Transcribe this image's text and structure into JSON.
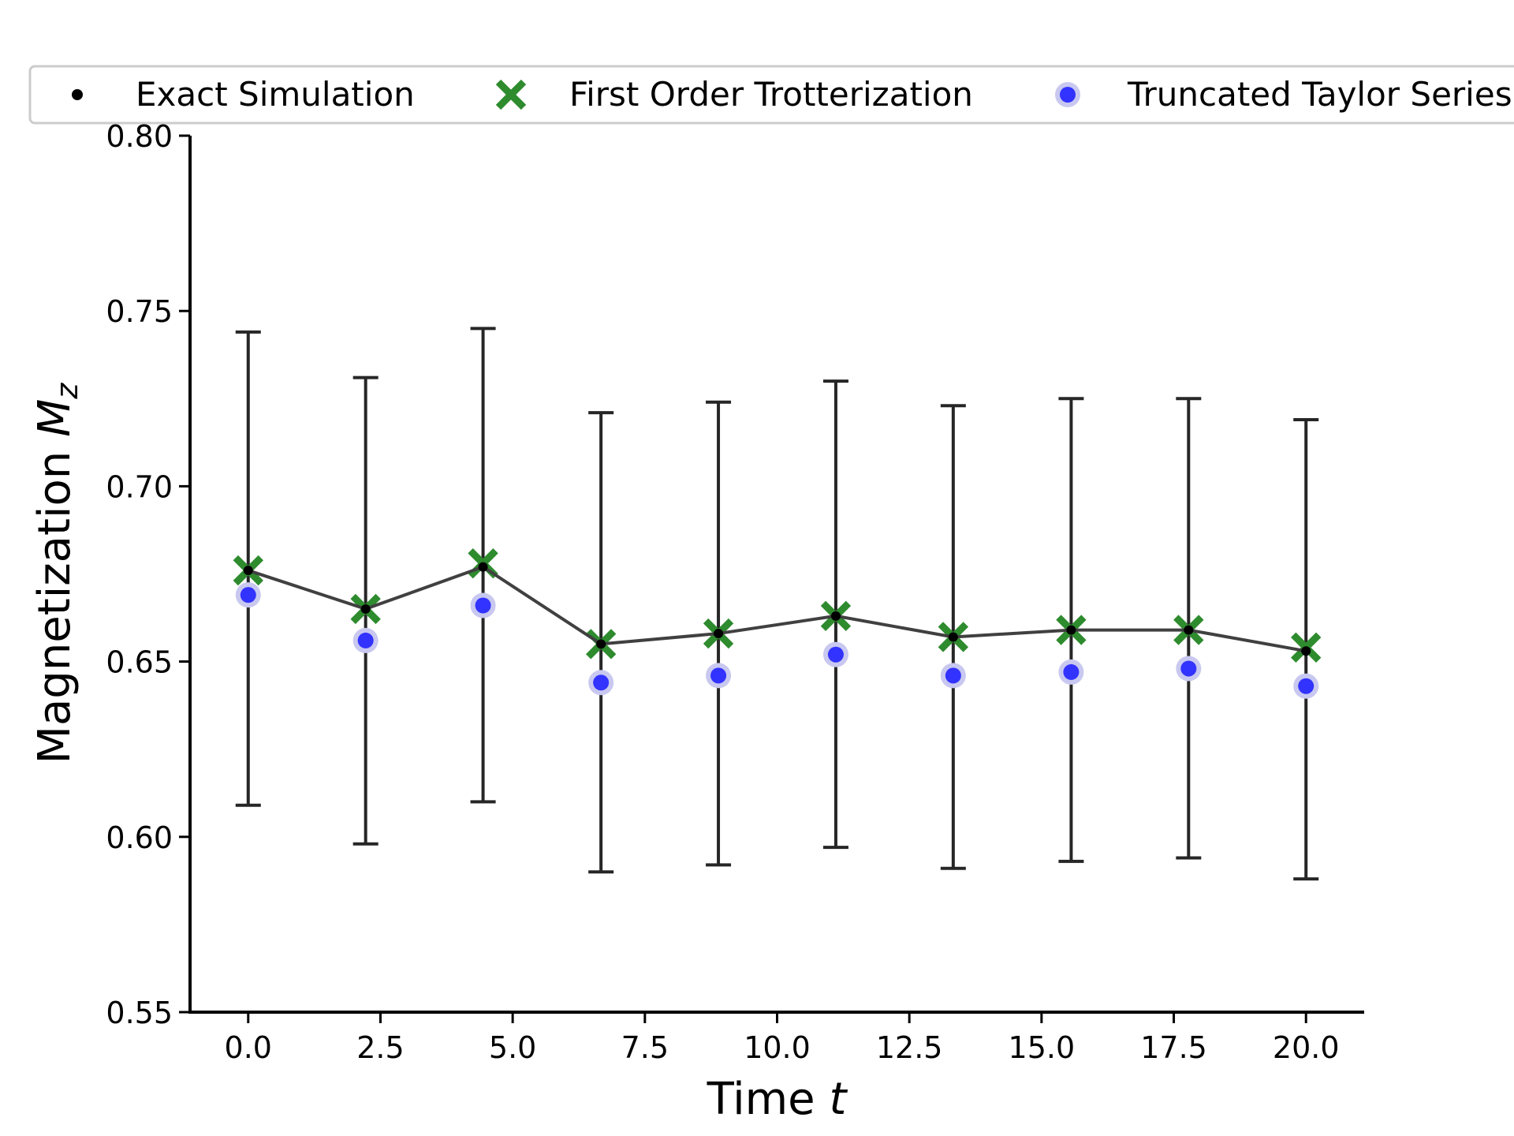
{
  "chart_data": {
    "type": "scatter",
    "title": "",
    "xlabel": "Time",
    "xlabel_var": "t",
    "ylabel": "Magnetization",
    "ylabel_var": "M",
    "ylabel_sub": "z",
    "xlim": [
      -1.1,
      21.1
    ],
    "ylim": [
      0.55,
      0.8
    ],
    "xticks": [
      0.0,
      2.5,
      5.0,
      7.5,
      10.0,
      12.5,
      15.0,
      17.5,
      20.0
    ],
    "xtick_labels": [
      "0.0",
      "2.5",
      "5.0",
      "7.5",
      "10.0",
      "12.5",
      "15.0",
      "17.5",
      "20.0"
    ],
    "yticks": [
      0.55,
      0.6,
      0.65,
      0.7,
      0.75,
      0.8
    ],
    "ytick_labels": [
      "0.55",
      "0.60",
      "0.65",
      "0.70",
      "0.75",
      "0.80"
    ],
    "grid": false,
    "legend_position": "top",
    "x": [
      0.0,
      2.22,
      4.44,
      6.67,
      8.89,
      11.11,
      13.33,
      15.56,
      17.78,
      20.0
    ],
    "series": [
      {
        "name": "Exact Simulation",
        "marker": "dot",
        "color": "#000000",
        "line_color": "#404040",
        "values": [
          0.676,
          0.665,
          0.677,
          0.655,
          0.658,
          0.663,
          0.657,
          0.659,
          0.659,
          0.653
        ],
        "error_low": [
          0.609,
          0.598,
          0.61,
          0.59,
          0.592,
          0.597,
          0.591,
          0.593,
          0.594,
          0.588
        ],
        "error_high": [
          0.744,
          0.731,
          0.745,
          0.721,
          0.724,
          0.73,
          0.723,
          0.725,
          0.725,
          0.719
        ]
      },
      {
        "name": "First Order Trotterization",
        "marker": "x",
        "color": "#2e8b2e",
        "values": [
          0.676,
          0.665,
          0.678,
          0.655,
          0.658,
          0.663,
          0.657,
          0.659,
          0.659,
          0.654
        ]
      },
      {
        "name": "Truncated Taylor Series",
        "marker": "circle",
        "color": "#3333ff",
        "halo_color": "#c8c8f0",
        "values": [
          0.669,
          0.656,
          0.666,
          0.644,
          0.646,
          0.652,
          0.646,
          0.647,
          0.648,
          0.643
        ]
      }
    ]
  }
}
